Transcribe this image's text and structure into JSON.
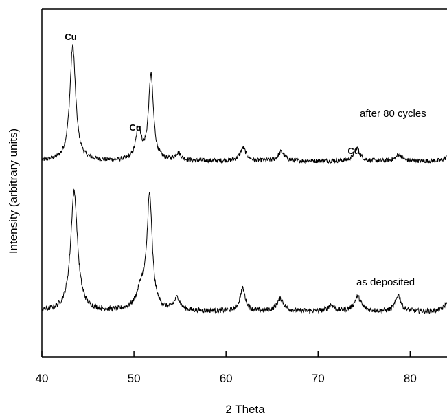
{
  "chart_data": {
    "type": "line",
    "title": "",
    "xlabel": "2 Theta",
    "ylabel": "Intensity (arbitrary units)",
    "xlim": [
      40,
      84
    ],
    "xticks": [
      40,
      50,
      60,
      70,
      80
    ],
    "xtick_labels": [
      "40",
      "50",
      "60",
      "70",
      "80"
    ],
    "yticks_shown": false,
    "grid": false,
    "legend": "none",
    "series": [
      {
        "name": "after 80 cycles",
        "baseline": 0.08,
        "noise": 0.012,
        "peaks": [
          {
            "x": 43.35,
            "height": 0.62,
            "width": 0.38
          },
          {
            "x": 50.5,
            "height": 0.17,
            "width": 0.35
          },
          {
            "x": 51.85,
            "height": 0.46,
            "width": 0.32
          },
          {
            "x": 54.8,
            "height": 0.04,
            "width": 0.35
          },
          {
            "x": 61.85,
            "height": 0.07,
            "width": 0.4
          },
          {
            "x": 66.0,
            "height": 0.05,
            "width": 0.4
          },
          {
            "x": 74.2,
            "height": 0.07,
            "width": 0.4
          },
          {
            "x": 78.8,
            "height": 0.035,
            "width": 0.4
          },
          {
            "x": 84.0,
            "height": 0.02,
            "width": 0.4
          }
        ]
      },
      {
        "name": "as deposited",
        "baseline": 0.09,
        "noise": 0.012,
        "peaks": [
          {
            "x": 43.5,
            "height": 0.58,
            "width": 0.45
          },
          {
            "x": 50.8,
            "height": 0.1,
            "width": 0.6
          },
          {
            "x": 51.7,
            "height": 0.54,
            "width": 0.34
          },
          {
            "x": 54.7,
            "height": 0.06,
            "width": 0.4
          },
          {
            "x": 61.8,
            "height": 0.11,
            "width": 0.35
          },
          {
            "x": 65.9,
            "height": 0.06,
            "width": 0.45
          },
          {
            "x": 71.4,
            "height": 0.03,
            "width": 0.4
          },
          {
            "x": 74.3,
            "height": 0.07,
            "width": 0.45
          },
          {
            "x": 78.7,
            "height": 0.08,
            "width": 0.35
          },
          {
            "x": 84.0,
            "height": 0.04,
            "width": 0.4
          }
        ]
      }
    ],
    "annotations": [
      {
        "text": "Cu",
        "x": 43.3
      },
      {
        "text": "Cu",
        "x": 50.4
      },
      {
        "text": "Cu",
        "x": 74.2
      }
    ],
    "series_labels": [
      {
        "text": "after 80 cycles"
      },
      {
        "text": "as deposited"
      }
    ]
  }
}
